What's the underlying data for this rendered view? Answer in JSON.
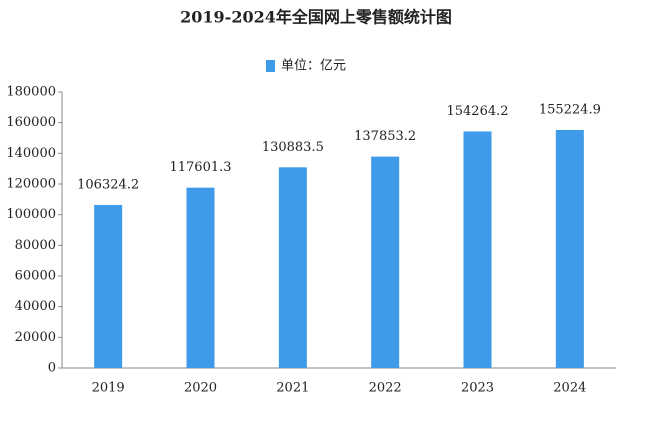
{
  "chart_data": {
    "type": "bar",
    "title": "2019-2024年全国网上零售额统计图",
    "categories": [
      "2019",
      "2020",
      "2021",
      "2022",
      "2023",
      "2024"
    ],
    "series": [
      {
        "name": "单位：亿元",
        "color": "#3d9be9",
        "values": [
          106324.2,
          117601.3,
          130883.5,
          137853.2,
          154264.2,
          155224.9
        ]
      }
    ],
    "ylim": [
      0,
      180000
    ],
    "yticks": [
      0,
      20000,
      40000,
      60000,
      80000,
      100000,
      120000,
      140000,
      160000,
      180000
    ],
    "grid": false,
    "legend": "top"
  }
}
